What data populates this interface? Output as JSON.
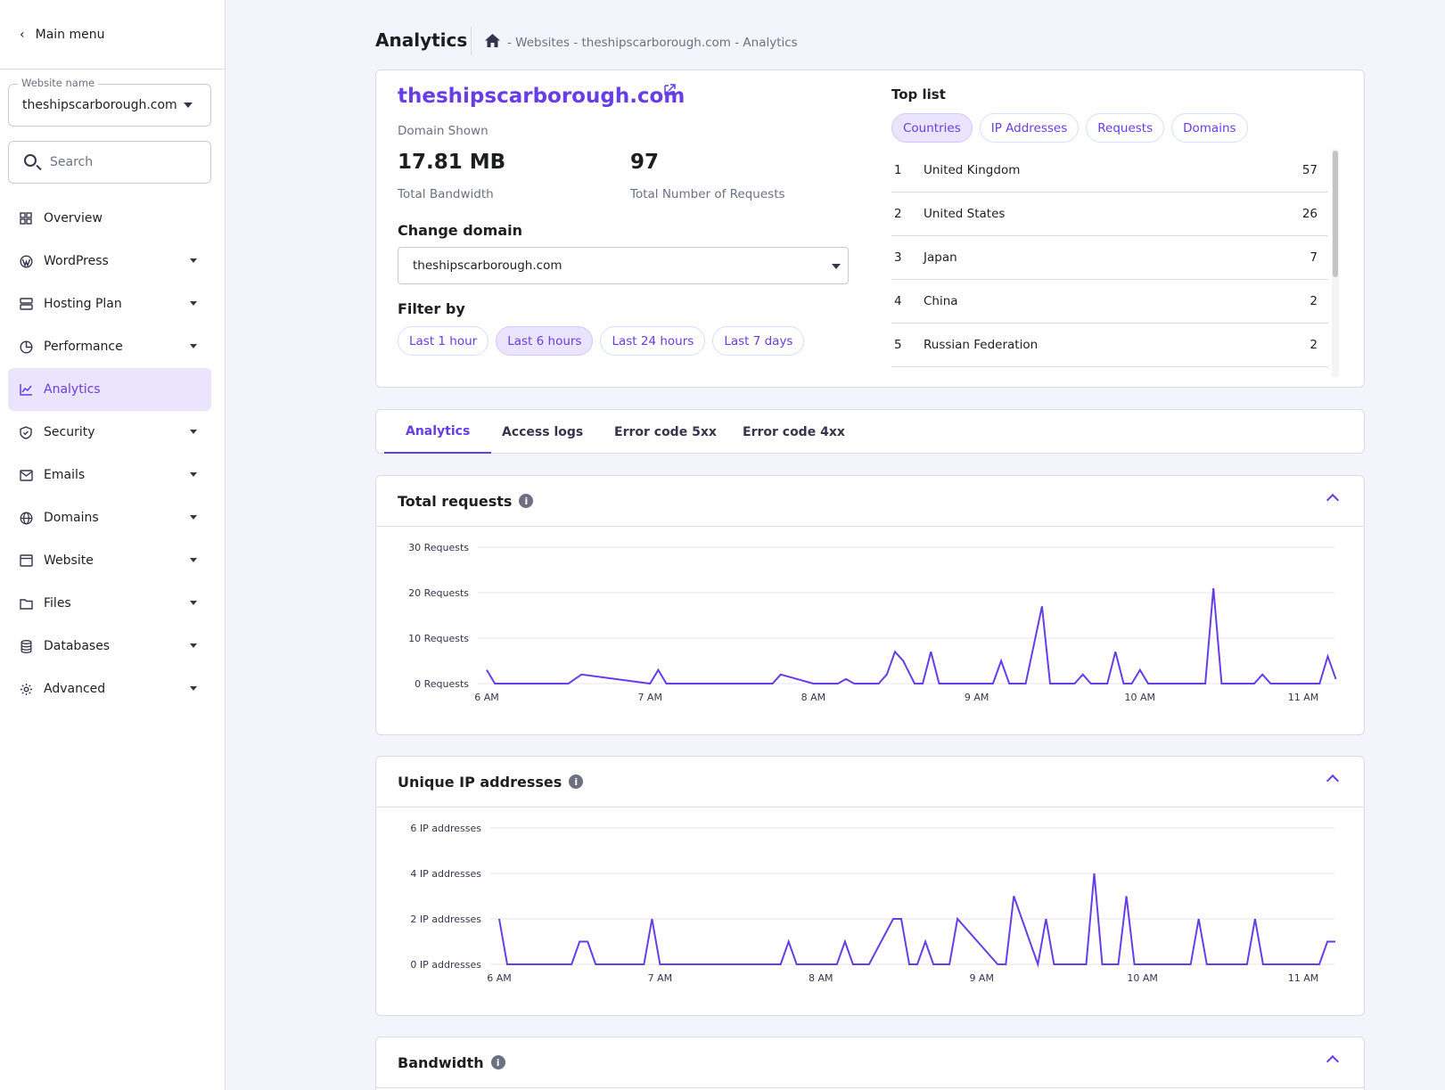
{
  "sidebar": {
    "main_menu": "Main menu",
    "website_label": "Website name",
    "website_value": "theshipscarborough.com",
    "search_placeholder": "Search",
    "items": [
      {
        "label": "Overview",
        "icon": "grid-icon",
        "dropdown": false,
        "active": false
      },
      {
        "label": "WordPress",
        "icon": "wordpress-icon",
        "dropdown": true,
        "active": false
      },
      {
        "label": "Hosting Plan",
        "icon": "server-icon",
        "dropdown": true,
        "active": false
      },
      {
        "label": "Performance",
        "icon": "pie-icon",
        "dropdown": true,
        "active": false
      },
      {
        "label": "Analytics",
        "icon": "chart-line-icon",
        "dropdown": false,
        "active": true
      },
      {
        "label": "Security",
        "icon": "shield-icon",
        "dropdown": true,
        "active": false
      },
      {
        "label": "Emails",
        "icon": "mail-icon",
        "dropdown": true,
        "active": false
      },
      {
        "label": "Domains",
        "icon": "globe-icon",
        "dropdown": true,
        "active": false
      },
      {
        "label": "Website",
        "icon": "browser-icon",
        "dropdown": true,
        "active": false
      },
      {
        "label": "Files",
        "icon": "folder-icon",
        "dropdown": true,
        "active": false
      },
      {
        "label": "Databases",
        "icon": "database-icon",
        "dropdown": true,
        "active": false
      },
      {
        "label": "Advanced",
        "icon": "gear-icon",
        "dropdown": true,
        "active": false
      }
    ]
  },
  "header": {
    "title": "Analytics",
    "breadcrumb": "- Websites - theshipscarborough.com - Analytics"
  },
  "summary": {
    "domain": "theshipscarborough.com",
    "domain_shown_label": "Domain Shown",
    "bandwidth_value": "17.81 MB",
    "bandwidth_label": "Total Bandwidth",
    "requests_value": "97",
    "requests_label": "Total Number of Requests",
    "change_domain_heading": "Change domain",
    "change_domain_value": "theshipscarborough.com",
    "filter_heading": "Filter by",
    "filters": [
      {
        "label": "Last 1 hour",
        "selected": false
      },
      {
        "label": "Last 6 hours",
        "selected": true
      },
      {
        "label": "Last 24 hours",
        "selected": false
      },
      {
        "label": "Last 7 days",
        "selected": false
      }
    ]
  },
  "toplist": {
    "heading": "Top list",
    "chips": [
      {
        "label": "Countries",
        "selected": true
      },
      {
        "label": "IP Addresses",
        "selected": false
      },
      {
        "label": "Requests",
        "selected": false
      },
      {
        "label": "Domains",
        "selected": false
      }
    ],
    "rows": [
      {
        "rank": "1",
        "name": "United Kingdom",
        "count": "57"
      },
      {
        "rank": "2",
        "name": "United States",
        "count": "26"
      },
      {
        "rank": "3",
        "name": "Japan",
        "count": "7"
      },
      {
        "rank": "4",
        "name": "China",
        "count": "2"
      },
      {
        "rank": "5",
        "name": "Russian Federation",
        "count": "2"
      }
    ]
  },
  "tabs": [
    {
      "label": "Analytics",
      "active": true
    },
    {
      "label": "Access logs",
      "active": false
    },
    {
      "label": "Error code 5xx",
      "active": false
    },
    {
      "label": "Error code 4xx",
      "active": false
    }
  ],
  "cards": {
    "requests_title": "Total requests",
    "ips_title": "Unique IP addresses",
    "bandwidth_title": "Bandwidth"
  },
  "colors": {
    "accent": "#673de6",
    "accent_light": "#ebe4ff"
  },
  "chart_data": [
    {
      "type": "line",
      "title": "Total requests",
      "y_ticks": [
        "0 Requests",
        "10 Requests",
        "20 Requests",
        "30 Requests"
      ],
      "ylim": [
        0,
        30
      ],
      "x_ticks": [
        "6 AM",
        "7 AM",
        "8 AM",
        "9 AM",
        "10 AM",
        "11 AM"
      ],
      "x_tick_hours": [
        6,
        7,
        8,
        9,
        10,
        11
      ],
      "grid": true,
      "series": [
        {
          "x": [
            6.0,
            6.05,
            6.5,
            6.58,
            7.0,
            7.05,
            7.1,
            7.3,
            7.6,
            7.75,
            7.8,
            8.0,
            8.15,
            8.2,
            8.25,
            8.4,
            8.45,
            8.5,
            8.55,
            8.62,
            8.67,
            8.72,
            8.77,
            9.0,
            9.1,
            9.15,
            9.2,
            9.3,
            9.4,
            9.45,
            9.5,
            9.6,
            9.65,
            9.7,
            9.8,
            9.85,
            9.9,
            9.95,
            10.0,
            10.05,
            10.4,
            10.45,
            10.5,
            10.7,
            10.75,
            10.8,
            11.1,
            11.15,
            11.2
          ],
          "y": [
            3,
            0,
            0,
            2,
            0,
            3,
            0,
            0,
            0,
            0,
            2,
            0,
            0,
            1,
            0,
            0,
            2,
            7,
            5,
            0,
            0,
            7,
            0,
            0,
            0,
            5,
            0,
            0,
            17,
            0,
            0,
            0,
            2,
            0,
            0,
            7,
            0,
            0,
            3,
            0,
            0,
            21,
            0,
            0,
            2,
            0,
            0,
            6,
            1
          ]
        }
      ]
    },
    {
      "type": "line",
      "title": "Unique IP addresses",
      "y_ticks": [
        "0 IP addresses",
        "2 IP addresses",
        "4 IP addresses",
        "6 IP addresses"
      ],
      "ylim": [
        0,
        6
      ],
      "x_ticks": [
        "6 AM",
        "7 AM",
        "8 AM",
        "9 AM",
        "10 AM",
        "11 AM"
      ],
      "x_tick_hours": [
        6,
        7,
        8,
        9,
        10,
        11
      ],
      "grid": true,
      "series": [
        {
          "x": [
            6.0,
            6.05,
            6.45,
            6.5,
            6.55,
            6.6,
            6.9,
            6.95,
            7.0,
            7.75,
            7.8,
            7.85,
            8.1,
            8.15,
            8.2,
            8.3,
            8.45,
            8.5,
            8.55,
            8.6,
            8.65,
            8.7,
            8.8,
            8.85,
            9.1,
            9.15,
            9.2,
            9.35,
            9.4,
            9.45,
            9.65,
            9.7,
            9.75,
            9.85,
            9.9,
            9.95,
            10.0,
            10.05,
            10.1,
            10.3,
            10.35,
            10.4,
            10.65,
            10.7,
            10.75,
            11.1,
            11.15,
            11.2
          ],
          "y": [
            2,
            0,
            0,
            1,
            1,
            0,
            0,
            2,
            0,
            0,
            1,
            0,
            0,
            1,
            0,
            0,
            2,
            2,
            0,
            0,
            1,
            0,
            0,
            2,
            0,
            0,
            3,
            0,
            2,
            0,
            0,
            4,
            0,
            0,
            3,
            0,
            0,
            0,
            0,
            0,
            2,
            0,
            0,
            2,
            0,
            0,
            1,
            1
          ]
        }
      ]
    }
  ]
}
